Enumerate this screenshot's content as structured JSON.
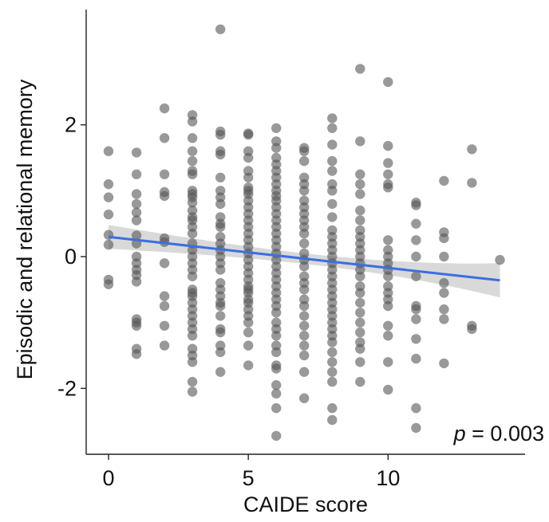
{
  "chart_data": {
    "type": "scatter",
    "title": "",
    "xlabel": "CAIDE score",
    "ylabel": "Episodic and relational memory",
    "xlim": [
      -0.8,
      14.9
    ],
    "ylim": [
      -3.0,
      3.75
    ],
    "xticks": [
      0,
      5,
      10
    ],
    "yticks": [
      -2,
      0,
      2
    ],
    "xtick_labels": [
      "0",
      "5",
      "10"
    ],
    "ytick_labels": [
      "-2",
      "0",
      "2"
    ],
    "grid": false,
    "annotation": {
      "italic": "p",
      "rest": " = 0.003"
    },
    "point_color": "#555555",
    "line_color": "#3b6fe0",
    "band_color": "#cccccc",
    "trend": {
      "x": [
        0,
        14
      ],
      "y": [
        0.3,
        -0.36
      ],
      "ci_halfwidth_ends": [
        0.18,
        0.26
      ],
      "ci_halfwidth_mid": 0.08
    },
    "points": {
      "0": [
        1.6,
        1.1,
        0.9,
        0.64,
        0.33,
        0.18,
        -0.35,
        -0.42
      ],
      "1": [
        1.58,
        1.25,
        0.95,
        0.8,
        0.67,
        0.55,
        0.32,
        0.2,
        0.0,
        -0.1,
        -0.2,
        -0.28,
        -0.38,
        -0.95,
        -1.0,
        -1.05,
        -1.4,
        -1.48
      ],
      "2": [
        2.25,
        1.8,
        1.25,
        0.98,
        0.92,
        0.28,
        0.22,
        -0.1,
        -0.6,
        -0.75,
        -1.05,
        -1.35
      ],
      "3": [
        2.15,
        2.05,
        1.8,
        1.6,
        1.45,
        1.3,
        1.25,
        1.0,
        0.95,
        0.9,
        0.82,
        0.7,
        0.6,
        0.55,
        0.45,
        0.35,
        0.2,
        0.1,
        0.0,
        -0.1,
        -0.2,
        -0.3,
        -0.5,
        -0.55,
        -0.6,
        -0.7,
        -0.8,
        -0.9,
        -1.0,
        -1.1,
        -1.2,
        -1.4,
        -1.5,
        -1.6,
        -1.9,
        -2.05
      ],
      "4": [
        3.45,
        1.9,
        1.85,
        1.6,
        1.55,
        1.2,
        1.0,
        0.9,
        0.8,
        0.6,
        0.5,
        0.45,
        0.3,
        0.2,
        0.1,
        0.0,
        -0.1,
        -0.2,
        -0.4,
        -0.5,
        -0.6,
        -0.7,
        -0.75,
        -0.9,
        -1.1,
        -1.15,
        -1.35,
        -1.45,
        -1.75
      ],
      "5": [
        1.87,
        1.85,
        1.6,
        1.5,
        1.3,
        1.2,
        1.05,
        1.0,
        0.95,
        0.85,
        0.75,
        0.65,
        0.55,
        0.45,
        0.35,
        0.25,
        0.15,
        0.05,
        -0.05,
        -0.15,
        -0.25,
        -0.35,
        -0.45,
        -0.5,
        -0.55,
        -0.65,
        -0.7,
        -0.8,
        -0.9,
        -1.0,
        -1.15,
        -1.35,
        -1.65
      ],
      "6": [
        1.95,
        1.75,
        1.65,
        1.5,
        1.4,
        1.3,
        1.2,
        1.1,
        1.0,
        0.92,
        0.85,
        0.75,
        0.65,
        0.55,
        0.45,
        0.35,
        0.25,
        0.15,
        0.05,
        -0.05,
        -0.15,
        -0.25,
        -0.35,
        -0.45,
        -0.55,
        -0.65,
        -0.75,
        -0.85,
        -1.0,
        -1.1,
        -1.2,
        -1.35,
        -1.45,
        -1.65,
        -1.7,
        -1.95,
        -2.08,
        -2.3,
        -2.72
      ],
      "7": [
        1.65,
        1.6,
        1.45,
        1.2,
        1.1,
        1.0,
        0.85,
        0.75,
        0.65,
        0.55,
        0.45,
        0.35,
        0.2,
        0.05,
        -0.05,
        -0.15,
        -0.3,
        -0.4,
        -0.5,
        -0.65,
        -0.75,
        -0.9,
        -1.05,
        -1.2,
        -1.35,
        -1.5,
        -1.75,
        -2.15
      ],
      "8": [
        2.1,
        1.95,
        1.7,
        1.45,
        1.3,
        1.1,
        1.0,
        0.8,
        0.6,
        0.4,
        0.3,
        0.2,
        0.1,
        0.0,
        -0.1,
        -0.2,
        -0.3,
        -0.4,
        -0.5,
        -0.6,
        -0.7,
        -0.8,
        -0.9,
        -1.0,
        -1.1,
        -1.2,
        -1.3,
        -1.45,
        -1.6,
        -1.75,
        -1.9,
        -2.3,
        -2.48
      ],
      "9": [
        2.85,
        1.75,
        1.25,
        1.1,
        0.95,
        0.7,
        0.55,
        0.4,
        0.3,
        0.2,
        0.1,
        0.0,
        -0.1,
        -0.2,
        -0.3,
        -0.45,
        -0.55,
        -0.7,
        -0.85,
        -1.0,
        -1.15,
        -1.3,
        -1.4,
        -1.6,
        -1.9
      ],
      "10": [
        2.65,
        1.68,
        1.42,
        1.25,
        1.1,
        1.05,
        0.25,
        0.1,
        0.0,
        -0.1,
        -0.2,
        -0.3,
        -0.45,
        -0.55,
        -0.65,
        -0.75,
        -1.05,
        -1.2,
        -1.6,
        -2.02
      ],
      "11": [
        0.82,
        0.78,
        0.5,
        0.25,
        0.0,
        -0.3,
        -0.75,
        -0.8,
        -0.95,
        -1.25,
        -1.55,
        -2.3,
        -2.6
      ],
      "12": [
        1.15,
        0.37,
        0.28,
        0.0,
        -0.4,
        -0.55,
        -0.8,
        -0.95,
        -1.62
      ],
      "13": [
        1.63,
        1.12,
        -1.05,
        -1.1
      ],
      "14": [
        -0.05
      ]
    }
  }
}
